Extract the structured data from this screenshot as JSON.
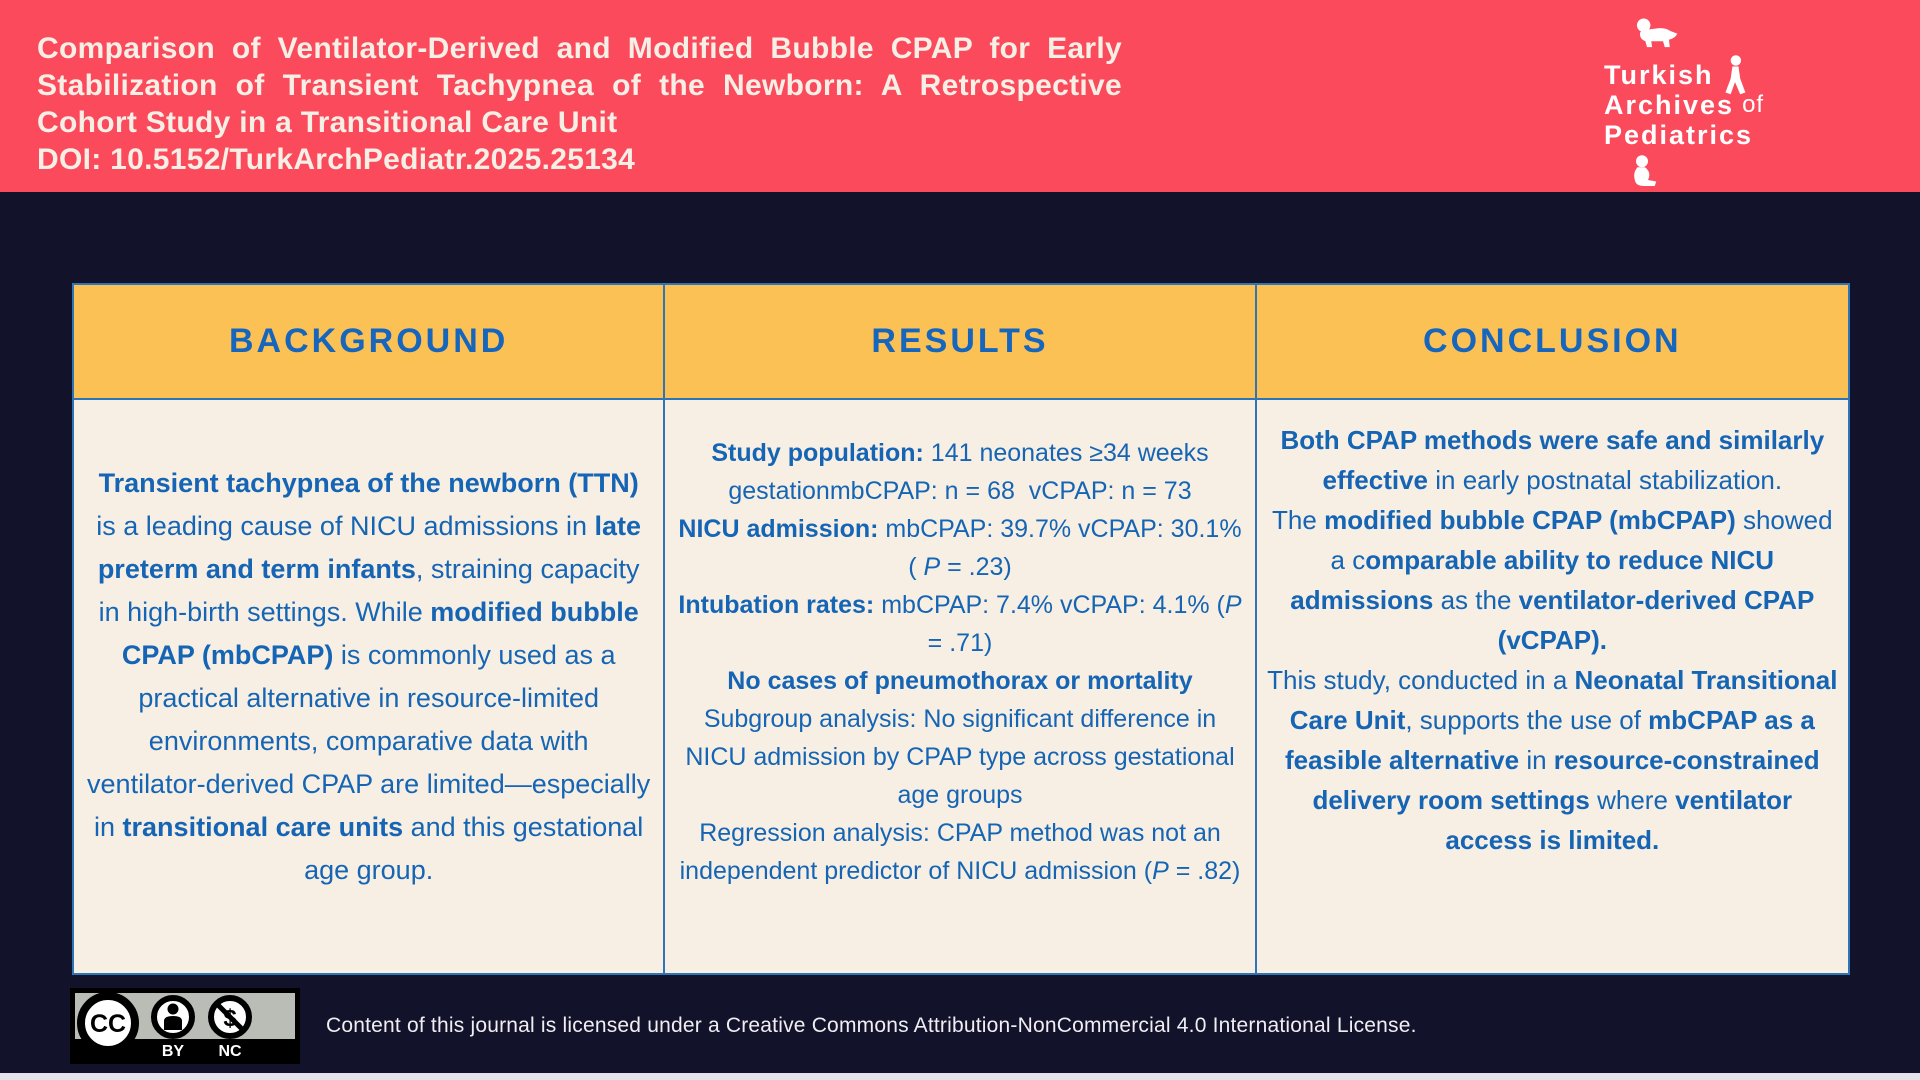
{
  "header": {
    "title": "Comparison of Ventilator-Derived and Modified Bubble CPAP for Early Stabilization of Transient Tachypnea of the Newborn: A Retrospective Cohort Study in a Transitional Care Unit",
    "doi": "DOI: 10.5152/TurkArchPediatr.2025.25134",
    "logo": {
      "line1": "Turkish",
      "line2": "Archives",
      "line2_suffix": "of",
      "line3": "Pediatrics"
    }
  },
  "colors": {
    "banner_red": "#fb4a5c",
    "background_navy": "#12132b",
    "header_orange": "#fcc154",
    "cell_cream": "#f7efe4",
    "text_blue": "#1565b4",
    "table_border_blue": "#2e74b7"
  },
  "table": {
    "columns": [
      {
        "header": "BACKGROUND",
        "paragraphs": [
          [
            {
              "t": "Transient tachypnea of the newborn (TTN)",
              "b": true
            },
            {
              "t": " is a leading cause of NICU admissions in "
            },
            {
              "t": "late preterm and term infants",
              "b": true
            },
            {
              "t": ", straining capacity in high-birth settings. While "
            },
            {
              "t": "modified bubble CPAP (mbCPAP)",
              "b": true
            },
            {
              "t": " is commonly used as a practical alternative in resource-limited environments, comparative data with ventilator-derived CPAP are limited—especially in "
            },
            {
              "t": "transitional care units",
              "b": true
            },
            {
              "t": " and this gestational age group."
            }
          ]
        ]
      },
      {
        "header": "RESULTS",
        "paragraphs": [
          [
            {
              "t": "Study population:",
              "b": true
            },
            {
              "t": " 141 neonates ≥34 weeks gestationmbCPAP: n = 68  vCPAP: n = 73"
            }
          ],
          [
            {
              "t": "NICU admission:",
              "b": true
            },
            {
              "t": " mbCPAP: 39.7% vCPAP: 30.1% ( "
            },
            {
              "t": "P",
              "i": true
            },
            {
              "t": " = .23)"
            }
          ],
          [
            {
              "t": "Intubation rates:",
              "b": true
            },
            {
              "t": " mbCPAP: 7.4% vCPAP: 4.1% ("
            },
            {
              "t": "P",
              "i": true
            },
            {
              "t": " = .71)"
            }
          ],
          [
            {
              "t": "No cases of pneumothorax or mortality",
              "b": true
            }
          ],
          [
            {
              "t": "Subgroup analysis: No significant difference in NICU admission by CPAP type across gestational age groups"
            }
          ],
          [
            {
              "t": "Regression analysis: CPAP method was not an independent predictor of NICU admission ("
            },
            {
              "t": "P",
              "i": true
            },
            {
              "t": " = .82)"
            }
          ]
        ]
      },
      {
        "header": "CONCLUSION",
        "paragraphs": [
          [
            {
              "t": "Both CPAP methods were safe and similarly effective",
              "b": true
            },
            {
              "t": " in early postnatal stabilization."
            }
          ],
          [
            {
              "t": "The "
            },
            {
              "t": "modified bubble CPAP (mbCPAP)",
              "b": true
            },
            {
              "t": " showed a c"
            },
            {
              "t": "omparable ability to reduce NICU admissions",
              "b": true
            },
            {
              "t": " as the "
            },
            {
              "t": "ventilator-derived CPAP (vCPAP).",
              "b": true
            }
          ],
          [
            {
              "t": "This study, conducted in a "
            },
            {
              "t": "Neonatal Transitional Care Unit",
              "b": true
            },
            {
              "t": ", supports the use of "
            },
            {
              "t": "mbCPAP as a feasible alternative",
              "b": true
            },
            {
              "t": " in "
            },
            {
              "t": "resource-constrained delivery room settings",
              "b": true
            },
            {
              "t": " where "
            },
            {
              "t": "ventilator access is limited.",
              "b": true
            }
          ]
        ]
      }
    ]
  },
  "footer": {
    "license_text": "Content of this journal is licensed under a Creative Commons Attribution-NonCommercial 4.0 International License.",
    "badge": {
      "cc": "CC",
      "by": "BY",
      "nc": "NC",
      "nc_symbol": "$"
    }
  }
}
